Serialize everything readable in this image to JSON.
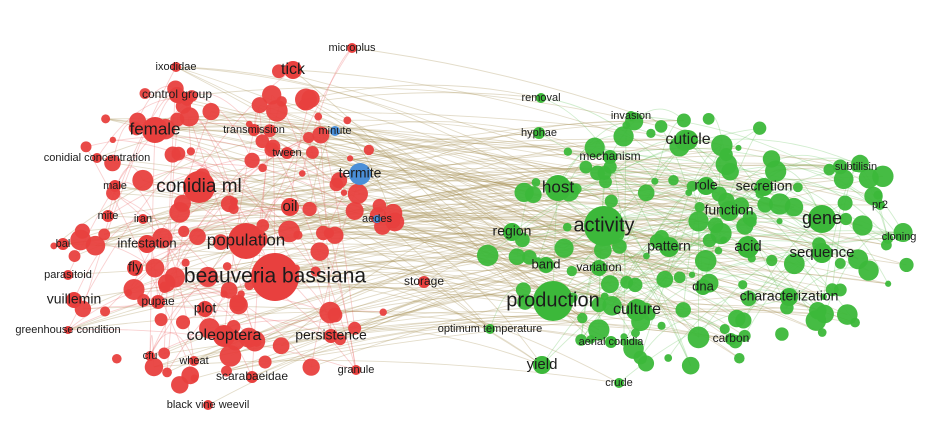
{
  "nodes": [
    "microplus",
    "tick",
    "ixodidae",
    "control group",
    "female",
    "transmission",
    "conidial concentration",
    "tween",
    "male",
    "conidia ml",
    "oil",
    "mite",
    "iran",
    "population",
    "infestation",
    "bal",
    "fly",
    "beauveria bassiana",
    "parasitoid",
    "vuillemin",
    "pupae",
    "plot",
    "storage",
    "greenhouse condition",
    "coleoptera",
    "persistence",
    "cfu",
    "wheat",
    "granule",
    "scarabaeidae",
    "black vine weevil",
    "minute",
    "termite",
    "aedes",
    "removal",
    "invasion",
    "hyphae",
    "cuticle",
    "mechanism",
    "subtilisin",
    "host",
    "role",
    "secretion",
    "activity",
    "function",
    "gene",
    "pr2",
    "region",
    "pattern",
    "acid",
    "sequence",
    "cloning",
    "band",
    "variation",
    "dna",
    "production",
    "culture",
    "characterization",
    "optimum temperature",
    "carbon",
    "aerial conidia",
    "yield",
    "crude"
  ]
}
